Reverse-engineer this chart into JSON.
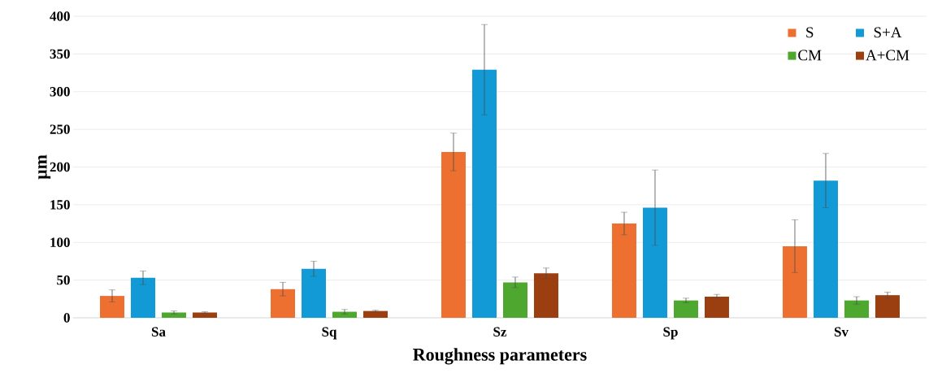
{
  "chart_data": {
    "type": "bar",
    "xlabel": "Roughness parameters",
    "ylabel": "μm",
    "categories": [
      "Sa",
      "Sq",
      "Sz",
      "Sp",
      "Sv"
    ],
    "series": [
      {
        "name": "S",
        "color": "#ed7031",
        "values": [
          29,
          38,
          220,
          125,
          95
        ],
        "errors": [
          8,
          9,
          25,
          15,
          35
        ]
      },
      {
        "name": "S+A",
        "color": "#119ad6",
        "values": [
          53,
          65,
          329,
          146,
          182
        ],
        "errors": [
          9,
          10,
          60,
          50,
          36
        ]
      },
      {
        "name": "CM",
        "color": "#4ea72e",
        "values": [
          7,
          8,
          47,
          23,
          23
        ],
        "errors": [
          2,
          3,
          7,
          3,
          5
        ]
      },
      {
        "name": "A+CM",
        "color": "#9c3f10",
        "values": [
          7,
          9,
          59,
          28,
          30
        ],
        "errors": [
          1,
          1,
          7,
          3,
          4
        ]
      }
    ],
    "ylim": [
      0,
      400
    ],
    "yticks": [
      0,
      50,
      100,
      150,
      200,
      250,
      300,
      350,
      400
    ],
    "grid": "y",
    "legend": "top right"
  }
}
